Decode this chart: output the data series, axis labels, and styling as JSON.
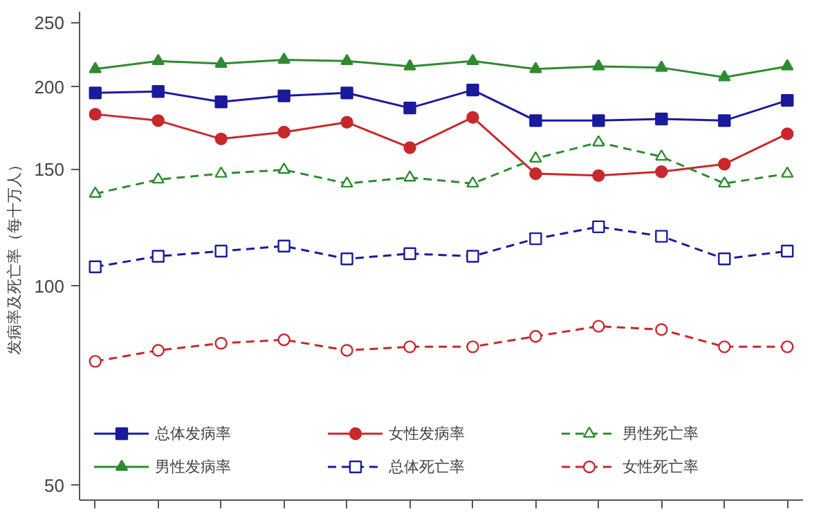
{
  "chart_data": {
    "type": "line",
    "ylabel": "发病率及死亡率（每十万人）",
    "categories": [
      null,
      null,
      null,
      null,
      null,
      null,
      null,
      null,
      null,
      null,
      null,
      null
    ],
    "log": "y",
    "ylim": [
      47.5,
      260
    ],
    "yticks": [
      50,
      100,
      150,
      200,
      250
    ],
    "grid": false,
    "legend": "bottom",
    "tick_labels": "y",
    "series": [
      {
        "name": "总体发病率",
        "color": "#1a1a9c",
        "marker": "square",
        "line_style": "solid",
        "values": [
          196,
          197,
          190,
          194,
          196,
          186,
          198,
          178,
          178,
          179,
          178,
          191
        ]
      },
      {
        "name": "男性发病率",
        "color": "#2e8b2e",
        "marker": "triangle",
        "line_style": "solid",
        "values": [
          213,
          219,
          217,
          220,
          219,
          215,
          219,
          213,
          215,
          214,
          207,
          215
        ]
      },
      {
        "name": "女性发病率",
        "color": "#c8282c",
        "marker": "circle",
        "line_style": "solid",
        "values": [
          182,
          178,
          167,
          171,
          177,
          162,
          180,
          148,
          147,
          149,
          153,
          170
        ]
      },
      {
        "name": "总体死亡率",
        "color": "#1a1a9c",
        "marker": "square",
        "line_style": "dashed",
        "values": [
          107,
          111,
          113,
          115,
          110,
          112,
          111,
          118,
          123,
          119,
          110,
          113
        ]
      },
      {
        "name": "男性死亡率",
        "color": "#2e8b2e",
        "marker": "triangle",
        "line_style": "dashed",
        "values": [
          138,
          145,
          148,
          150,
          143,
          146,
          143,
          156,
          165,
          157,
          143,
          148
        ]
      },
      {
        "name": "女性死亡率",
        "color": "#c8282c",
        "marker": "circle",
        "line_style": "dashed",
        "values": [
          77,
          80,
          82,
          83,
          80,
          81,
          81,
          84,
          87,
          86,
          81,
          81
        ]
      }
    ]
  }
}
